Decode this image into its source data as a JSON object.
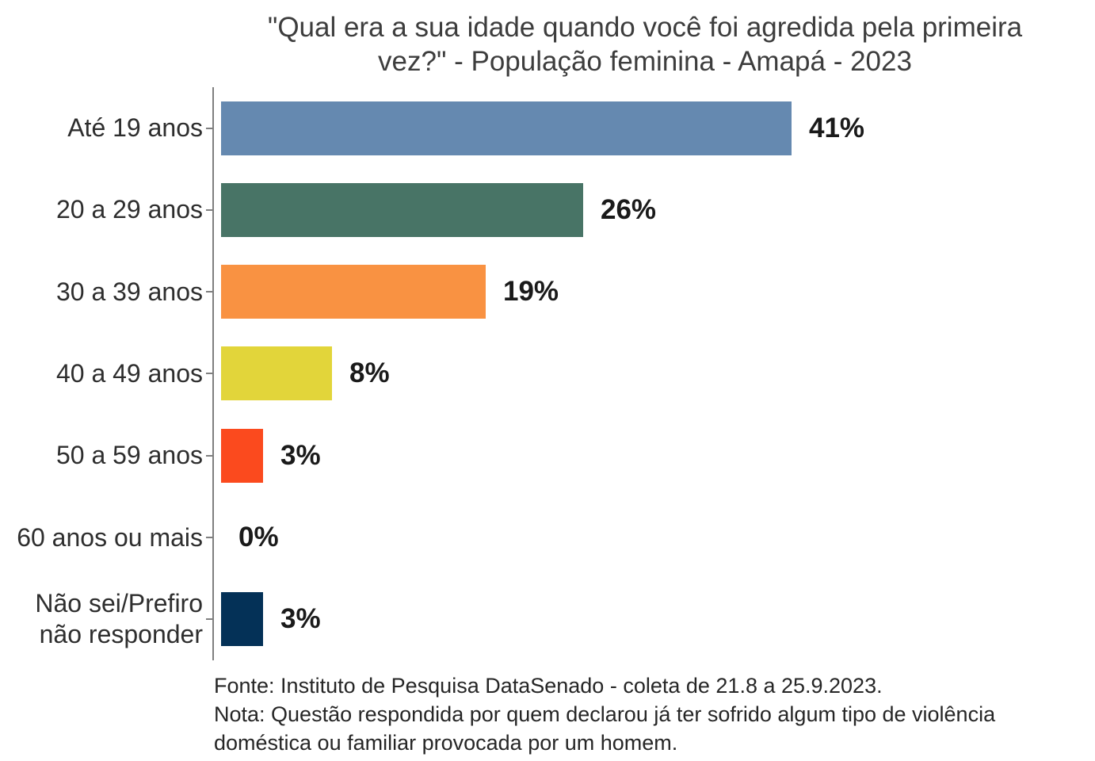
{
  "chart_data": {
    "type": "bar",
    "orientation": "horizontal",
    "title": "\"Qual era a sua idade quando você foi agredida pela primeira vez?\" - População feminina - Amapá - 2023",
    "title_lines": [
      "\"Qual era a sua idade quando você foi agredida pela primeira",
      "vez?\" - População feminina - Amapá - 2023"
    ],
    "categories": [
      "Até 19 anos",
      "20 a 29 anos",
      "30 a 39 anos",
      "40 a 49 anos",
      "50 a 59 anos",
      "60 anos ou mais",
      "Não sei/Prefiro não responder"
    ],
    "values": [
      41,
      26,
      19,
      8,
      3,
      0,
      3
    ],
    "value_labels": [
      "41%",
      "26%",
      "19%",
      "8%",
      "3%",
      "0%",
      "3%"
    ],
    "bar_colors": [
      "#6589B0",
      "#487466",
      "#F99242",
      "#E2D53A",
      "#FB4A1E",
      "#6589B0",
      "#043157"
    ],
    "xlim": [
      0,
      41
    ],
    "xlabel": "",
    "ylabel": "",
    "grid": "off",
    "legend": "none",
    "axis_color": "#7f7f7f",
    "title_color": "#3d3d3d",
    "label_color": "#2e2e2e",
    "value_label_color": "#1a1a1a",
    "source_note": "Fonte: Instituto de Pesquisa DataSenado - coleta de 21.8 a 25.9.2023.",
    "note_lines": [
      "Nota: Questão respondida por quem declarou já ter sofrido algum tipo de violência",
      "doméstica ou familiar provocada por um homem."
    ]
  }
}
